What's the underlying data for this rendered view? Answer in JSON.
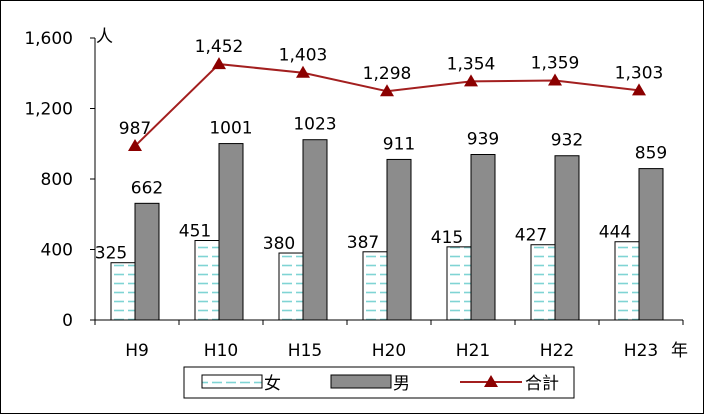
{
  "chart_data": {
    "type": "bar",
    "categories": [
      "H9",
      "H10",
      "H15",
      "H20",
      "H21",
      "H22",
      "H23"
    ],
    "series": [
      {
        "name": "女",
        "kind": "bar",
        "values": [
          325,
          451,
          380,
          387,
          415,
          427,
          444
        ],
        "labels": [
          "325",
          "451",
          "380",
          "387",
          "415",
          "427",
          "444"
        ]
      },
      {
        "name": "男",
        "kind": "bar",
        "values": [
          662,
          1001,
          1023,
          911,
          939,
          932,
          859
        ],
        "labels": [
          "662",
          "1001",
          "1023",
          "911",
          "939",
          "932",
          "859"
        ]
      },
      {
        "name": "合計",
        "kind": "line",
        "values": [
          987,
          1452,
          1403,
          1298,
          1354,
          1359,
          1303
        ],
        "labels": [
          "987",
          "1,452",
          "1,403",
          "1,298",
          "1,354",
          "1,359",
          "1,303"
        ]
      }
    ],
    "y_ticks": [
      "0",
      "400",
      "800",
      "1,200",
      "1,600"
    ],
    "ylim": [
      0,
      1600
    ],
    "ylabel": "人",
    "xlabel": "年",
    "legend_position": "bottom",
    "grid": false,
    "colors": {
      "female_fill": "#ffffff",
      "female_pattern": "#7fd4d4",
      "male_fill": "#8c8c8c",
      "line": "#a31f1f",
      "marker": "#8b0000"
    }
  }
}
